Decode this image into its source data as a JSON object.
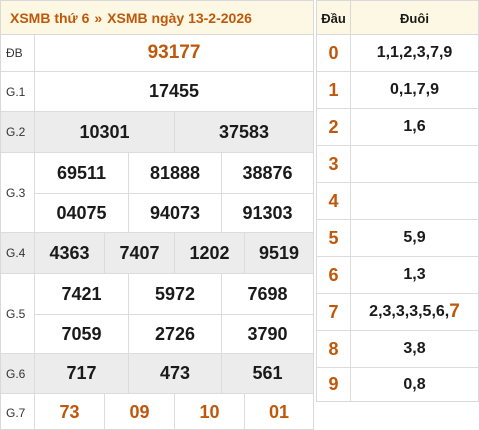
{
  "header": {
    "title_left": "XSMB thứ 6",
    "separator": "»",
    "title_right": "XSMB ngày 13-2-2026"
  },
  "prizes": [
    {
      "label": "ĐB",
      "numbers": [
        "93177"
      ]
    },
    {
      "label": "G.1",
      "numbers": [
        "17455"
      ]
    },
    {
      "label": "G.2",
      "numbers": [
        "10301",
        "37583"
      ]
    },
    {
      "label": "G.3",
      "numbers": [
        "69511",
        "81888",
        "38876",
        "04075",
        "94073",
        "91303"
      ]
    },
    {
      "label": "G.4",
      "numbers": [
        "4363",
        "7407",
        "1202",
        "9519"
      ]
    },
    {
      "label": "G.5",
      "numbers": [
        "7421",
        "5972",
        "7698",
        "7059",
        "2726",
        "3790"
      ]
    },
    {
      "label": "G.6",
      "numbers": [
        "717",
        "473",
        "561"
      ]
    },
    {
      "label": "G.7",
      "numbers": [
        "73",
        "09",
        "10",
        "01"
      ]
    }
  ],
  "loto": {
    "header_dau": "Đầu",
    "header_duoi": "Đuôi",
    "rows": [
      {
        "dau": "0",
        "duoi": "1,1,2,3,7,9",
        "duoi_hl": ""
      },
      {
        "dau": "1",
        "duoi": "0,1,7,9",
        "duoi_hl": ""
      },
      {
        "dau": "2",
        "duoi": "1,6",
        "duoi_hl": ""
      },
      {
        "dau": "3",
        "duoi": "",
        "duoi_hl": ""
      },
      {
        "dau": "4",
        "duoi": "",
        "duoi_hl": ""
      },
      {
        "dau": "5",
        "duoi": "5,9",
        "duoi_hl": ""
      },
      {
        "dau": "6",
        "duoi": "1,3",
        "duoi_hl": ""
      },
      {
        "dau": "7",
        "duoi": "2,3,3,3,5,6,",
        "duoi_hl": "7"
      },
      {
        "dau": "8",
        "duoi": "3,8",
        "duoi_hl": ""
      },
      {
        "dau": "9",
        "duoi": "0,8",
        "duoi_hl": ""
      }
    ]
  },
  "colors": {
    "accent": "#c0580b",
    "header_bg": "#fcf8e3",
    "shaded_row_bg": "#ececec"
  }
}
